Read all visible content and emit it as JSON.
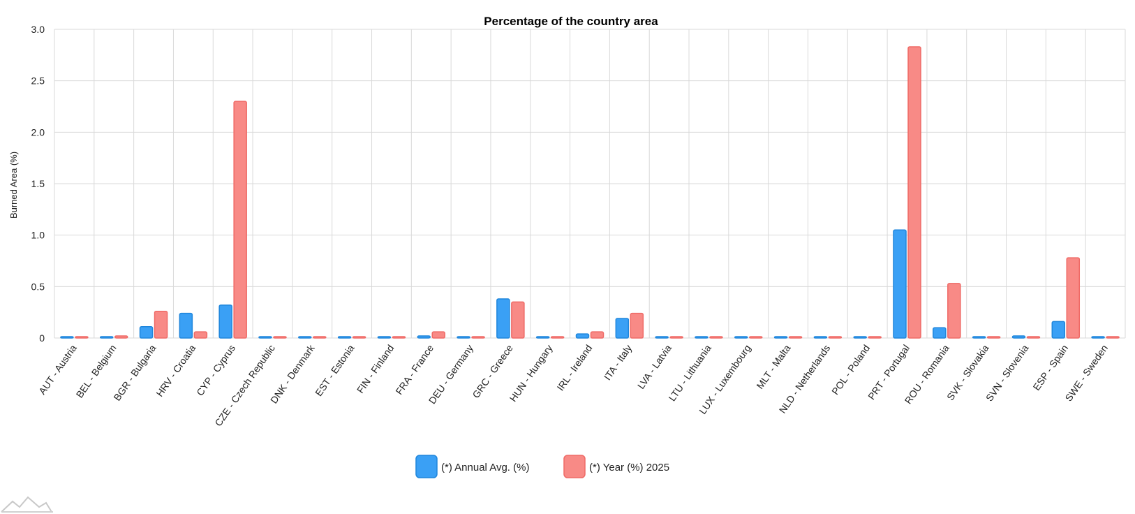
{
  "chart_data": {
    "type": "bar",
    "title": "Percentage of the country area",
    "xlabel": "",
    "ylabel": "Burned Area (%)",
    "ylim": [
      0,
      3.0
    ],
    "yticks": [
      "0",
      "0.5",
      "1.0",
      "1.5",
      "2.0",
      "2.5",
      "3.0"
    ],
    "grid": true,
    "legend": "bottom-center",
    "categories": [
      "AUT - Austria",
      "BEL - Belgium",
      "BGR - Bulgaria",
      "HRV - Croatia",
      "CYP - Cyprus",
      "CZE - Czech Republic",
      "DNK - Denmark",
      "EST - Estonia",
      "FIN - Finland",
      "FRA - France",
      "DEU - Germany",
      "GRC - Greece",
      "HUN - Hungary",
      "IRL - Ireland",
      "ITA - Italy",
      "LVA - Latvia",
      "LTU - Lithuania",
      "LUX - Luxembourg",
      "MLT - Malta",
      "NLD - Netherlands",
      "POL - Poland",
      "PRT - Portugal",
      "ROU - Romania",
      "SVK - Slovakia",
      "SVN - Slovenia",
      "ESP - Spain",
      "SWE - Sweden"
    ],
    "series": [
      {
        "name": "(*) Annual Avg. (%)",
        "color": "#3aa0f5",
        "stroke": "#1f86dc",
        "values": [
          0.005,
          0.01,
          0.11,
          0.24,
          0.32,
          0.003,
          0.005,
          0.005,
          0.005,
          0.02,
          0.005,
          0.38,
          0.01,
          0.04,
          0.19,
          0.005,
          0.005,
          0.005,
          0.01,
          0.005,
          0.005,
          1.05,
          0.1,
          0.005,
          0.02,
          0.16,
          0.005
        ]
      },
      {
        "name": "(*) Year (%) 2025",
        "color": "#f88a86",
        "stroke": "#ef6a66",
        "values": [
          0.01,
          0.02,
          0.26,
          0.06,
          2.3,
          0.0,
          0.01,
          0.0,
          0.003,
          0.06,
          0.01,
          0.35,
          0.01,
          0.06,
          0.24,
          0.003,
          0.0,
          0.0,
          0.0,
          0.003,
          0.003,
          2.83,
          0.53,
          0.01,
          0.01,
          0.78,
          0.003
        ]
      }
    ]
  }
}
